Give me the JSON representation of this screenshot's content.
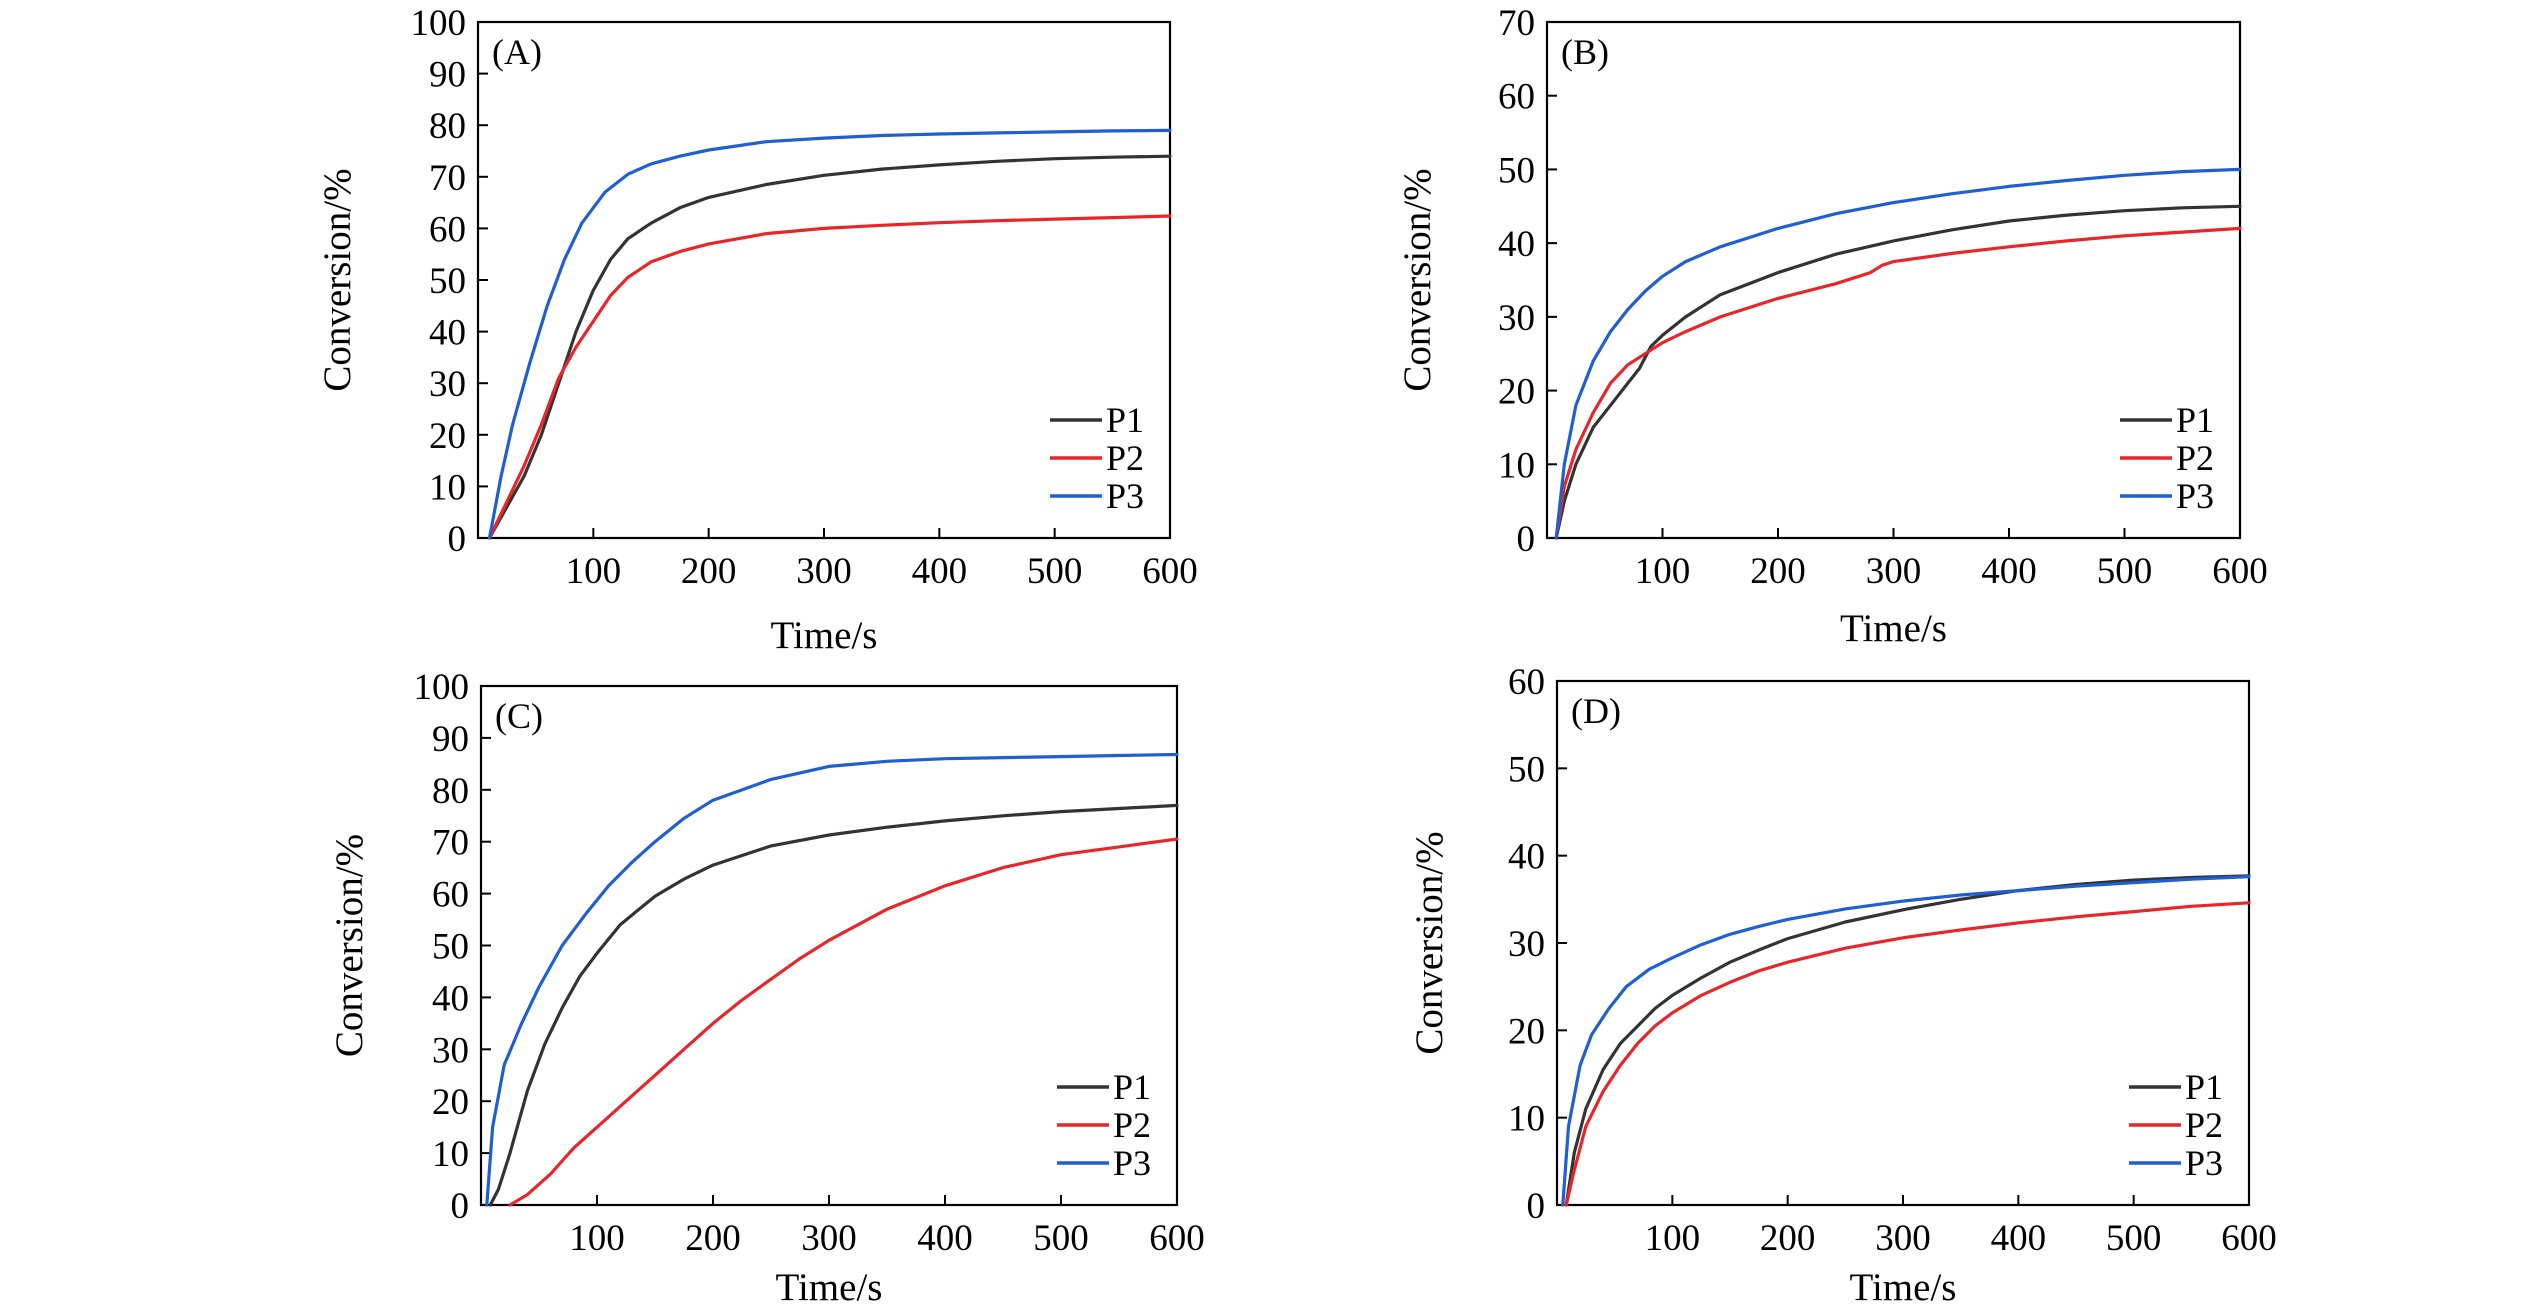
{
  "chart_data": [
    {
      "type": "line",
      "panel": "(A)",
      "xlabel": "Time/s",
      "ylabel": "Conversion/%",
      "xlim": [
        0,
        600
      ],
      "ylim": [
        0,
        100
      ],
      "xticks": [
        100,
        200,
        300,
        400,
        500,
        600
      ],
      "yticks": [
        0,
        10,
        20,
        30,
        40,
        50,
        60,
        70,
        80,
        90,
        100
      ],
      "legend_position": "bottom-right",
      "series": [
        {
          "name": "P1",
          "color": "#333333",
          "x": [
            10,
            25,
            40,
            55,
            70,
            85,
            100,
            115,
            130,
            150,
            175,
            200,
            250,
            300,
            350,
            400,
            450,
            500,
            550,
            600
          ],
          "y": [
            0,
            6,
            12,
            20,
            30,
            40,
            48,
            54,
            58,
            61,
            64,
            66,
            68.5,
            70.3,
            71.5,
            72.3,
            73,
            73.5,
            73.8,
            74
          ]
        },
        {
          "name": "P2",
          "color": "#e8262a",
          "x": [
            10,
            25,
            40,
            55,
            70,
            85,
            100,
            115,
            130,
            150,
            175,
            200,
            250,
            300,
            350,
            400,
            450,
            500,
            550,
            600
          ],
          "y": [
            0,
            7,
            14,
            22,
            31,
            37,
            42,
            47,
            50.5,
            53.5,
            55.5,
            57,
            59,
            60,
            60.6,
            61.1,
            61.5,
            61.8,
            62.1,
            62.4
          ]
        },
        {
          "name": "P3",
          "color": "#1f5fd3",
          "x": [
            10,
            20,
            30,
            45,
            60,
            75,
            90,
            110,
            130,
            150,
            175,
            200,
            250,
            300,
            350,
            400,
            450,
            500,
            550,
            600
          ],
          "y": [
            0,
            12,
            22,
            34,
            45,
            54,
            61,
            67,
            70.5,
            72.5,
            74,
            75.2,
            76.8,
            77.5,
            78,
            78.3,
            78.5,
            78.7,
            78.9,
            79
          ]
        }
      ]
    },
    {
      "type": "line",
      "panel": "(B)",
      "xlabel": "Time/s",
      "ylabel": "Conversion/%",
      "xlim": [
        0,
        600
      ],
      "ylim": [
        0,
        70
      ],
      "xticks": [
        100,
        200,
        300,
        400,
        500,
        600
      ],
      "yticks": [
        0,
        10,
        20,
        30,
        40,
        50,
        60,
        70
      ],
      "legend_position": "bottom-right",
      "series": [
        {
          "name": "P1",
          "color": "#333333",
          "x": [
            8,
            15,
            25,
            40,
            55,
            70,
            80,
            90,
            100,
            120,
            150,
            200,
            250,
            300,
            350,
            400,
            450,
            500,
            550,
            600
          ],
          "y": [
            0,
            5,
            10,
            15,
            18,
            21,
            23,
            26,
            27.5,
            30,
            33,
            36,
            38.5,
            40.3,
            41.8,
            43,
            43.8,
            44.4,
            44.8,
            45
          ]
        },
        {
          "name": "P2",
          "color": "#e8262a",
          "x": [
            8,
            15,
            25,
            40,
            55,
            70,
            85,
            100,
            120,
            150,
            200,
            250,
            280,
            290,
            300,
            350,
            400,
            450,
            500,
            550,
            600
          ],
          "y": [
            0,
            7,
            12,
            17,
            21,
            23.5,
            25,
            26.5,
            28,
            30,
            32.5,
            34.5,
            36,
            37,
            37.5,
            38.6,
            39.5,
            40.3,
            41,
            41.5,
            42
          ]
        },
        {
          "name": "P3",
          "color": "#1f5fd3",
          "x": [
            8,
            15,
            25,
            40,
            55,
            70,
            85,
            100,
            120,
            150,
            200,
            250,
            300,
            350,
            400,
            450,
            500,
            550,
            600
          ],
          "y": [
            0,
            10,
            18,
            24,
            28,
            31,
            33.5,
            35.5,
            37.5,
            39.5,
            42,
            44,
            45.5,
            46.7,
            47.7,
            48.5,
            49.2,
            49.7,
            50
          ]
        }
      ]
    },
    {
      "type": "line",
      "panel": "(C)",
      "xlabel": "Time/s",
      "ylabel": "Conversion/%",
      "xlim": [
        0,
        600
      ],
      "ylim": [
        0,
        100
      ],
      "xticks": [
        100,
        200,
        300,
        400,
        500,
        600
      ],
      "yticks": [
        0,
        10,
        20,
        30,
        40,
        50,
        60,
        70,
        80,
        90,
        100
      ],
      "legend_position": "bottom-right",
      "series": [
        {
          "name": "P1",
          "color": "#333333",
          "x": [
            8,
            15,
            25,
            40,
            55,
            70,
            85,
            100,
            120,
            150,
            175,
            200,
            250,
            300,
            350,
            400,
            450,
            500,
            550,
            600
          ],
          "y": [
            0,
            3,
            10,
            22,
            31,
            38,
            44,
            48.5,
            54,
            59.5,
            62.8,
            65.5,
            69.2,
            71.3,
            72.8,
            74,
            75,
            75.8,
            76.4,
            77
          ]
        },
        {
          "name": "P2",
          "color": "#e8262a",
          "x": [
            25,
            40,
            60,
            80,
            100,
            125,
            150,
            175,
            200,
            225,
            250,
            275,
            300,
            350,
            400,
            450,
            500,
            550,
            600
          ],
          "y": [
            0,
            2,
            6,
            11,
            15,
            20,
            25,
            30,
            35,
            39.5,
            43.5,
            47.5,
            51,
            57,
            61.5,
            65,
            67.5,
            69,
            70.5
          ]
        },
        {
          "name": "P3",
          "color": "#1f5fd3",
          "x": [
            5,
            10,
            20,
            35,
            50,
            70,
            90,
            110,
            130,
            150,
            175,
            200,
            250,
            300,
            350,
            400,
            450,
            500,
            550,
            600
          ],
          "y": [
            0,
            15,
            27,
            35,
            42,
            50,
            56,
            61.5,
            66,
            70,
            74.5,
            78,
            82,
            84.5,
            85.5,
            86,
            86.2,
            86.4,
            86.6,
            86.8
          ]
        }
      ]
    },
    {
      "type": "line",
      "panel": "(D)",
      "xlabel": "Time/s",
      "ylabel": "Conversion/%",
      "xlim": [
        0,
        600
      ],
      "ylim": [
        0,
        60
      ],
      "xticks": [
        100,
        200,
        300,
        400,
        500,
        600
      ],
      "yticks": [
        0,
        10,
        20,
        30,
        40,
        50,
        60
      ],
      "legend_position": "bottom-right",
      "series": [
        {
          "name": "P1",
          "color": "#333333",
          "x": [
            8,
            15,
            25,
            40,
            55,
            70,
            85,
            100,
            125,
            150,
            175,
            200,
            250,
            300,
            350,
            400,
            450,
            500,
            550,
            600
          ],
          "y": [
            0,
            6,
            11,
            15.5,
            18.5,
            20.5,
            22.5,
            24,
            26,
            27.8,
            29.2,
            30.5,
            32.4,
            33.8,
            35,
            36,
            36.7,
            37.2,
            37.5,
            37.7
          ]
        },
        {
          "name": "P2",
          "color": "#e8262a",
          "x": [
            8,
            15,
            25,
            40,
            55,
            70,
            85,
            100,
            125,
            150,
            175,
            200,
            250,
            300,
            350,
            400,
            450,
            500,
            550,
            600
          ],
          "y": [
            0,
            4,
            9,
            13,
            16,
            18.5,
            20.5,
            22,
            24,
            25.5,
            26.8,
            27.8,
            29.4,
            30.6,
            31.5,
            32.3,
            33,
            33.6,
            34.2,
            34.6
          ]
        },
        {
          "name": "P3",
          "color": "#1f5fd3",
          "x": [
            5,
            10,
            20,
            30,
            45,
            60,
            80,
            100,
            125,
            150,
            175,
            200,
            250,
            300,
            350,
            400,
            450,
            500,
            550,
            600
          ],
          "y": [
            0,
            9,
            16,
            19.5,
            22.5,
            25,
            27,
            28.3,
            29.8,
            31,
            31.9,
            32.7,
            33.9,
            34.8,
            35.5,
            36,
            36.5,
            36.9,
            37.3,
            37.6
          ]
        }
      ]
    }
  ]
}
